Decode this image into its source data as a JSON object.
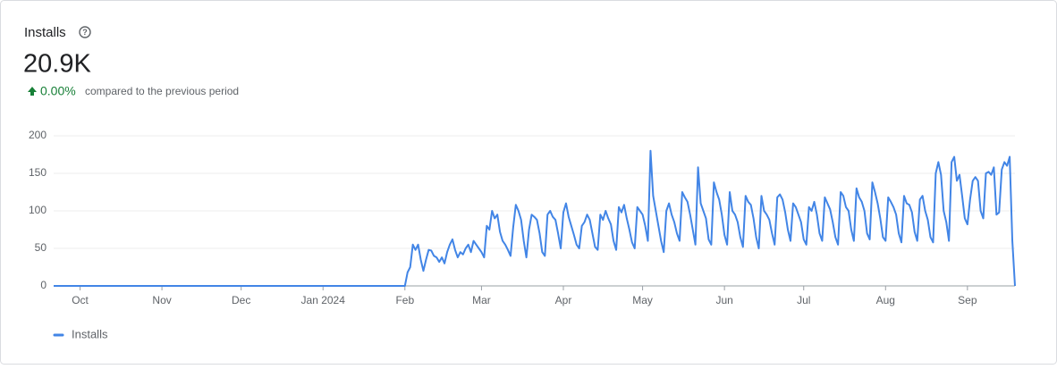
{
  "header": {
    "title": "Installs",
    "value": "20.9K",
    "change": "0.00%",
    "change_note": "compared to the previous period"
  },
  "chart_data": {
    "type": "line",
    "categories": [
      null,
      null,
      null,
      null,
      null,
      null,
      null,
      null,
      null,
      null,
      "Oct",
      null,
      null,
      null,
      null,
      null,
      null,
      null,
      null,
      null,
      null,
      null,
      null,
      null,
      null,
      null,
      null,
      null,
      null,
      null,
      null,
      null,
      null,
      null,
      null,
      null,
      null,
      null,
      null,
      null,
      null,
      "Nov",
      null,
      null,
      null,
      null,
      null,
      null,
      null,
      null,
      null,
      null,
      null,
      null,
      null,
      null,
      null,
      null,
      null,
      null,
      null,
      null,
      null,
      null,
      null,
      null,
      null,
      null,
      null,
      null,
      null,
      "Dec",
      null,
      null,
      null,
      null,
      null,
      null,
      null,
      null,
      null,
      null,
      null,
      null,
      null,
      null,
      null,
      null,
      null,
      null,
      null,
      null,
      null,
      null,
      null,
      null,
      null,
      null,
      null,
      null,
      null,
      null,
      "Jan 2024",
      null,
      null,
      null,
      null,
      null,
      null,
      null,
      null,
      null,
      null,
      null,
      null,
      null,
      null,
      null,
      null,
      null,
      null,
      null,
      null,
      null,
      null,
      null,
      null,
      null,
      null,
      null,
      null,
      null,
      null,
      "Feb",
      null,
      null,
      null,
      null,
      null,
      null,
      null,
      null,
      null,
      null,
      null,
      null,
      null,
      null,
      null,
      null,
      null,
      null,
      null,
      null,
      null,
      null,
      null,
      null,
      null,
      null,
      null,
      null,
      "Mar",
      null,
      null,
      null,
      null,
      null,
      null,
      null,
      null,
      null,
      null,
      null,
      null,
      null,
      null,
      null,
      null,
      null,
      null,
      null,
      null,
      null,
      null,
      null,
      null,
      null,
      null,
      null,
      null,
      null,
      null,
      "Apr",
      null,
      null,
      null,
      null,
      null,
      null,
      null,
      null,
      null,
      null,
      null,
      null,
      null,
      null,
      null,
      null,
      null,
      null,
      null,
      null,
      null,
      null,
      null,
      null,
      null,
      null,
      null,
      null,
      null,
      "May",
      null,
      null,
      null,
      null,
      null,
      null,
      null,
      null,
      null,
      null,
      null,
      null,
      null,
      null,
      null,
      null,
      null,
      null,
      null,
      null,
      null,
      null,
      null,
      null,
      null,
      null,
      null,
      null,
      null,
      null,
      "Jun",
      null,
      null,
      null,
      null,
      null,
      null,
      null,
      null,
      null,
      null,
      null,
      null,
      null,
      null,
      null,
      null,
      null,
      null,
      null,
      null,
      null,
      null,
      null,
      null,
      null,
      null,
      null,
      null,
      null,
      "Jul",
      null,
      null,
      null,
      null,
      null,
      null,
      null,
      null,
      null,
      null,
      null,
      null,
      null,
      null,
      null,
      null,
      null,
      null,
      null,
      null,
      null,
      null,
      null,
      null,
      null,
      null,
      null,
      null,
      null,
      null,
      "Aug",
      null,
      null,
      null,
      null,
      null,
      null,
      null,
      null,
      null,
      null,
      null,
      null,
      null,
      null,
      null,
      null,
      null,
      null,
      null,
      null,
      null,
      null,
      null,
      null,
      null,
      null,
      null,
      null,
      null,
      null,
      "Sep",
      null,
      null,
      null,
      null,
      null,
      null,
      null,
      null,
      null,
      null,
      null,
      null,
      null,
      null,
      null,
      null,
      null,
      null
    ],
    "series": [
      {
        "name": "Installs",
        "color": "#4285e6",
        "values": [
          0,
          0,
          0,
          0,
          0,
          0,
          0,
          0,
          0,
          0,
          0,
          0,
          0,
          0,
          0,
          0,
          0,
          0,
          0,
          0,
          0,
          0,
          0,
          0,
          0,
          0,
          0,
          0,
          0,
          0,
          0,
          0,
          0,
          0,
          0,
          0,
          0,
          0,
          0,
          0,
          0,
          0,
          0,
          0,
          0,
          0,
          0,
          0,
          0,
          0,
          0,
          0,
          0,
          0,
          0,
          0,
          0,
          0,
          0,
          0,
          0,
          0,
          0,
          0,
          0,
          0,
          0,
          0,
          0,
          0,
          0,
          0,
          0,
          0,
          0,
          0,
          0,
          0,
          0,
          0,
          0,
          0,
          0,
          0,
          0,
          0,
          0,
          0,
          0,
          0,
          0,
          0,
          0,
          0,
          0,
          0,
          0,
          0,
          0,
          0,
          0,
          0,
          0,
          0,
          0,
          0,
          0,
          0,
          0,
          0,
          0,
          0,
          0,
          0,
          0,
          0,
          0,
          0,
          0,
          0,
          0,
          0,
          0,
          0,
          0,
          0,
          0,
          0,
          0,
          0,
          0,
          0,
          0,
          0,
          18,
          25,
          55,
          48,
          55,
          35,
          20,
          35,
          48,
          47,
          40,
          38,
          32,
          38,
          30,
          45,
          55,
          62,
          48,
          38,
          45,
          42,
          50,
          55,
          45,
          60,
          55,
          50,
          45,
          38,
          80,
          75,
          100,
          90,
          95,
          72,
          60,
          55,
          48,
          40,
          78,
          108,
          100,
          88,
          60,
          38,
          75,
          95,
          92,
          88,
          70,
          45,
          40,
          95,
          100,
          92,
          88,
          70,
          50,
          98,
          110,
          92,
          80,
          68,
          55,
          50,
          80,
          85,
          95,
          88,
          70,
          52,
          48,
          95,
          88,
          100,
          90,
          82,
          60,
          48,
          105,
          98,
          108,
          90,
          75,
          58,
          50,
          105,
          100,
          95,
          80,
          60,
          180,
          120,
          100,
          80,
          60,
          45,
          100,
          110,
          95,
          85,
          70,
          60,
          125,
          118,
          112,
          95,
          75,
          55,
          158,
          110,
          100,
          90,
          62,
          55,
          138,
          125,
          115,
          95,
          68,
          55,
          125,
          100,
          95,
          85,
          65,
          52,
          120,
          112,
          108,
          90,
          65,
          50,
          120,
          100,
          95,
          88,
          70,
          55,
          118,
          122,
          115,
          98,
          75,
          60,
          110,
          105,
          95,
          85,
          62,
          55,
          105,
          100,
          112,
          95,
          70,
          60,
          118,
          110,
          102,
          85,
          65,
          55,
          125,
          120,
          105,
          100,
          75,
          60,
          130,
          118,
          112,
          100,
          70,
          62,
          138,
          125,
          110,
          90,
          65,
          60,
          118,
          112,
          105,
          95,
          70,
          58,
          120,
          110,
          108,
          98,
          72,
          60,
          115,
          120,
          100,
          88,
          65,
          58,
          150,
          165,
          148,
          100,
          85,
          60,
          165,
          172,
          140,
          148,
          120,
          90,
          82,
          115,
          140,
          145,
          140,
          100,
          90,
          150,
          152,
          148,
          158,
          95,
          98,
          155,
          165,
          160,
          172,
          60,
          0
        ]
      }
    ],
    "ylim": [
      0,
      200
    ],
    "yticks": [
      0,
      50,
      100,
      150,
      200
    ],
    "grid": true,
    "legend": "bottom-left"
  }
}
